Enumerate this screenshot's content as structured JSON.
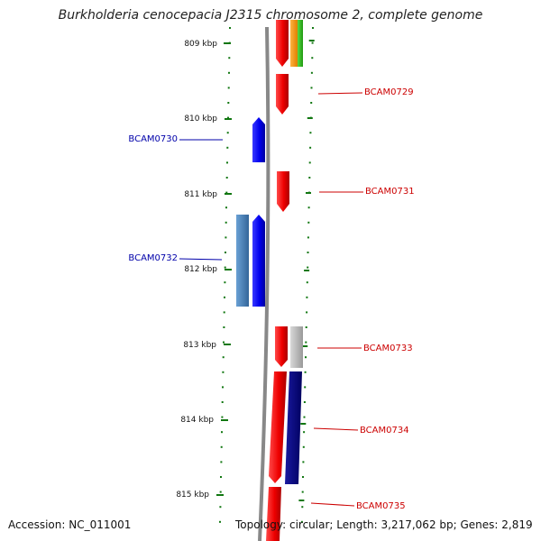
{
  "title": "Burkholderia cenocepacia J2315 chromosome 2, complete genome",
  "accession_text": "Accession: NC_011001",
  "topology_text": "Topology: circular; Length: 3,217,062 bp; Genes: 2,819",
  "kbp_ticks": [
    "809 kbp",
    "810 kbp",
    "811 kbp",
    "812 kbp",
    "813 kbp",
    "814 kbp",
    "815 kbp"
  ],
  "gene_labels": [
    {
      "name": "BCAM0729",
      "strand": "forward"
    },
    {
      "name": "BCAM0730",
      "strand": "reverse"
    },
    {
      "name": "BCAM0731",
      "strand": "forward"
    },
    {
      "name": "BCAM0732",
      "strand": "reverse"
    },
    {
      "name": "BCAM0733",
      "strand": "forward"
    },
    {
      "name": "BCAM0734",
      "strand": "forward"
    },
    {
      "name": "BCAM0735",
      "strand": "forward"
    }
  ],
  "colors": {
    "forward_gene": "#ff0000",
    "reverse_gene": "#0000ff",
    "forward_label": "#cc0000",
    "reverse_label": "#0000aa",
    "tick": "#117711",
    "backbone": "#888888",
    "orange_feature": "#ff9900",
    "green_feature": "#33bb22",
    "grey_feature": "#bbbbbb",
    "steelblue_feature": "#4682b4",
    "navy_feature": "#000080"
  }
}
